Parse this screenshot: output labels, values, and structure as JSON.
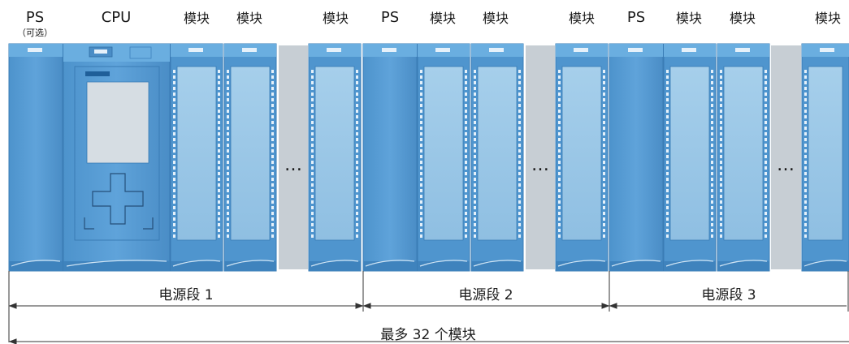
{
  "top_labels": {
    "ps": "PS",
    "ps_optional": "（可选）",
    "cpu": "CPU",
    "module": "模块"
  },
  "segments": [
    "电源段 1",
    "电源段  2",
    "电源段  3"
  ],
  "gap_marker": "…",
  "max_label": "最多  32  个模块",
  "colors": {
    "module_body": "#5b9fd6",
    "module_light": "#9ec9e8",
    "module_dark": "#3f83bd",
    "gap": "#c7ced4",
    "arrow": "#333333"
  }
}
